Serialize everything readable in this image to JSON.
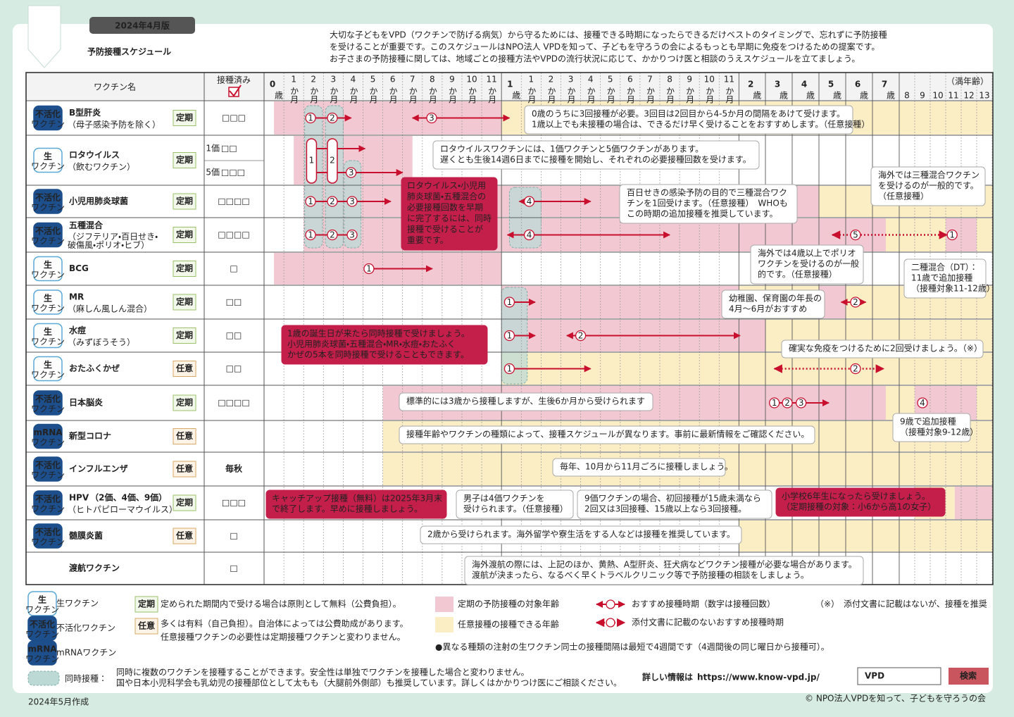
{
  "header": {
    "edition": "2024年4月版",
    "title": "予防接種スケジュール",
    "intro": [
      "大切な子どもをVPD（ワクチンで防げる病気）から守るためには、接種できる時期になったらできるだけベストのタイミングで、忘れずに予防接種",
      "を受けることが重要です。このスケジュールはNPO法人 VPDを知って、子どもを守ろうの会によるもっとも早期に免疫をつけるための提案です。",
      "お子さまの予防接種に関しては、地域ごとの接種方法やVPDの流行状況に応じて、かかりつけ医と相談のうえスケジュールを立てましょう。"
    ]
  },
  "table": {
    "vaccine_col": "ワクチン名",
    "done_col": "接種済み",
    "age_note": "（満年齢）",
    "ages": [
      {
        "num": "0",
        "unit": "歳"
      },
      {
        "num": "1",
        "unit": "か月"
      },
      {
        "num": "2",
        "unit": "か月"
      },
      {
        "num": "3",
        "unit": "か月"
      },
      {
        "num": "4",
        "unit": "か月"
      },
      {
        "num": "5",
        "unit": "か月"
      },
      {
        "num": "6",
        "unit": "か月"
      },
      {
        "num": "7",
        "unit": "か月"
      },
      {
        "num": "8",
        "unit": "か月"
      },
      {
        "num": "9",
        "unit": "か月"
      },
      {
        "num": "10",
        "unit": "か月"
      },
      {
        "num": "11",
        "unit": "か月"
      },
      {
        "num": "1",
        "unit": "歳"
      },
      {
        "num": "1",
        "unit": "か月"
      },
      {
        "num": "2",
        "unit": "か月"
      },
      {
        "num": "3",
        "unit": "か月"
      },
      {
        "num": "4",
        "unit": "か月"
      },
      {
        "num": "5",
        "unit": "か月"
      },
      {
        "num": "6",
        "unit": "か月"
      },
      {
        "num": "7",
        "unit": "か月"
      },
      {
        "num": "8",
        "unit": "か月"
      },
      {
        "num": "9",
        "unit": "か月"
      },
      {
        "num": "10",
        "unit": "か月"
      },
      {
        "num": "11",
        "unit": "か月"
      },
      {
        "num": "2",
        "unit": "歳"
      },
      {
        "num": "3",
        "unit": "歳"
      },
      {
        "num": "4",
        "unit": "歳"
      },
      {
        "num": "5",
        "unit": "歳"
      },
      {
        "num": "6",
        "unit": "歳"
      },
      {
        "num": "7",
        "unit": "歳"
      },
      {
        "num": "8"
      },
      {
        "num": "9"
      },
      {
        "num": "10"
      },
      {
        "num": "11"
      },
      {
        "num": "12"
      },
      {
        "num": "13"
      }
    ],
    "vaccines": [
      {
        "badge": {
          "top": "不活化",
          "bottom": "ワクチン"
        },
        "name": "B型肝炎",
        "sub": [
          "（母子感染予防を除く）"
        ],
        "category": "定期",
        "boxes": "□□□",
        "doses": [
          "1",
          "2",
          "3"
        ]
      },
      {
        "badge": {
          "top": "生",
          "bottom": "ワクチン"
        },
        "name": "ロタウイルス",
        "sub": [
          "（飲むワクチン）"
        ],
        "category": "定期",
        "subrows": [
          {
            "label": "1価",
            "boxes": "□□"
          },
          {
            "label": "5価",
            "boxes": "□□□"
          }
        ],
        "doses": [
          "1",
          "2",
          "3"
        ]
      },
      {
        "badge": {
          "top": "不活化",
          "bottom": "ワクチン"
        },
        "name": "小児用肺炎球菌",
        "category": "定期",
        "boxes": "□□□□",
        "doses": [
          "1",
          "2",
          "3",
          "4"
        ]
      },
      {
        "badge": {
          "top": "不活化",
          "bottom": "ワクチン"
        },
        "name": "五種混合",
        "sub": [
          "（ジフテリア・百日せき・",
          "破傷風・ポリオ・ヒブ）"
        ],
        "category": "定期",
        "boxes": "□□□□",
        "doses": [
          "1",
          "2",
          "3",
          "4",
          "5",
          "1"
        ]
      },
      {
        "badge": {
          "top": "生",
          "bottom": "ワクチン"
        },
        "name": "BCG",
        "category": "定期",
        "boxes": "□",
        "doses": [
          "1"
        ]
      },
      {
        "badge": {
          "top": "生",
          "bottom": "ワクチン"
        },
        "name": "MR",
        "sub": [
          "（麻しん風しん混合）"
        ],
        "category": "定期",
        "boxes": "□□",
        "doses": [
          "1",
          "2"
        ]
      },
      {
        "badge": {
          "top": "生",
          "bottom": "ワクチン"
        },
        "name": "水痘",
        "sub": [
          "（みずぼうそう）"
        ],
        "category": "定期",
        "boxes": "□□",
        "doses": [
          "1",
          "2"
        ]
      },
      {
        "badge": {
          "top": "生",
          "bottom": "ワクチン"
        },
        "name": "おたふくかぜ",
        "category": "任意",
        "boxes": "□□",
        "doses": [
          "1",
          "2"
        ]
      },
      {
        "badge": {
          "top": "不活化",
          "bottom": "ワクチン"
        },
        "name": "日本脳炎",
        "category": "定期",
        "boxes": "□□□□",
        "doses": [
          "1",
          "2",
          "3",
          "4"
        ]
      },
      {
        "badge": {
          "top": "mRNA",
          "bottom": "ワクチン"
        },
        "name": "新型コロナ",
        "category": "任意"
      },
      {
        "badge": {
          "top": "不活化",
          "bottom": "ワクチン"
        },
        "name": "インフルエンザ",
        "category": "任意",
        "boxes": "毎秋"
      },
      {
        "badge": {
          "top": "不活化",
          "bottom": "ワクチン"
        },
        "name": "HPV",
        "name_extra": "（2価、4価、9価）",
        "sub": [
          "（ヒトパピローマウイルス）"
        ],
        "category": "定期",
        "boxes": "□□□"
      },
      {
        "badge": {
          "top": "不活化",
          "bottom": "ワクチン"
        },
        "name": "髄膜炎菌",
        "category": "任意",
        "boxes": "□"
      },
      {
        "name": "渡航ワクチン",
        "boxes": "□"
      }
    ]
  },
  "notes": [
    [
      "0歳のうちに3回接種が必要。3回目は2回目から4-5か月の間隔をあけて受けます。",
      "1歳以上でも未接種の場合は、できるだけ早く受けることをおすすめします。（任意接種）"
    ],
    [
      "ロタウイルスワクチンには、1価ワクチンと5価ワクチンがあります。",
      "遅くとも生後14週6日までに接種を開始し、それぞれの必要接種回数を受けます。"
    ],
    [
      "ロタウイルス・小児用",
      "肺炎球菌・五種混合の",
      "必要接種回数を早期",
      "に完了するには、同時",
      "接種で受けることが",
      "重要です。"
    ],
    [
      "海外では三種混合ワクチン",
      "を受けるのが一般的です。",
      "（任意接種）"
    ],
    [
      "百日せきの感染予防の目的で三種混合ワク",
      "チンを1回受けます。（任意接種）　WHOも",
      "この時期の追加接種を推奨しています。"
    ],
    [
      "海外では4歳以上でポリオ",
      "ワクチンを受けるのが一般",
      "的です。（任意接種）"
    ],
    [
      "二種混合（DT）：",
      "11歳で追加接種",
      "（接種対象11-12歳）"
    ],
    [
      "幼稚園、保育園の年長の",
      "4月〜6月がおすすめ"
    ],
    [
      "1歳の誕生日が来たら同時接種で受けましょう。",
      "小児用肺炎球菌・五種混合・MR・水痘・おたふく",
      "かぜの5本を同時接種で受けることもできます。"
    ],
    [
      "確実な免疫をつけるために2回受けましょう。（※）"
    ],
    [
      "標準的には3歳から接種しますが、生後6か月から受けられます"
    ],
    [
      "9歳で追加接種",
      "（接種対象9-12歳）"
    ],
    [
      "接種年齢やワクチンの種類によって、接種スケジュールが異なります。事前に最新情報をご確認ください。"
    ],
    [
      "毎年、10月から11月ごろに接種しましょう。"
    ],
    [
      "キャッチアップ接種（無料）は2025年3月末",
      "で終了します。早めに接種しましょう。"
    ],
    [
      "男子は4価ワクチンを",
      "受けられます。（任意接種）"
    ],
    [
      "9価ワクチンの場合、初回接種が15歳未満なら",
      "2回又は3回接種、15歳以上なら3回接種。"
    ],
    [
      "小学校6年生になったら受けましょう。",
      "（定期接種の対象：小6から高1の女子）"
    ],
    [
      "2歳から受けられます。海外留学や寮生活をする人などは接種を推奨しています。"
    ],
    [
      "海外渡航の際には、上記のほか、黄熱、A型肝炎、狂犬病などワクチン接種が必要な場合があります。",
      "渡航が決まったら、なるべく早くトラベルクリニック等で予防接種の相談をしましょう。"
    ]
  ],
  "legend": {
    "live": {
      "top": "生",
      "bottom": "ワクチン",
      "text": "生ワクチン"
    },
    "inactivated": {
      "top": "不活化",
      "bottom": "ワクチン",
      "text": "不活化ワクチン"
    },
    "mrna": {
      "top": "mRNA",
      "bottom": "ワクチン",
      "text": "mRNAワクチン"
    },
    "teiki": {
      "term": "定期",
      "text": [
        "定められた期間内で受ける場合は原則として無料（公費負担）。"
      ]
    },
    "nini": {
      "term": "任意",
      "text": [
        "多くは有料（自己負担）。自治体によっては公費助成があります。",
        "任意接種ワクチンの必要性は定期接種ワクチンと変わりません。"
      ]
    },
    "pink": "定期の予防接種の対象年齢",
    "yellow": "任意接種の接種できる年齢",
    "arrow": "おすすめ接種時期（数字は接種回数）",
    "dotted": "添付文書に記載のないおすすめ接種時期",
    "asterisk": {
      "mark": "（※）",
      "text": "添付文書に記載はないが、接種を推奨"
    },
    "interval_note": "●異なる種類の注射の生ワクチン同士の接種間隔は最短で4週間です（4週間後の同じ曜日から接種可）。",
    "simultaneous": {
      "term": "同時接種：",
      "text": [
        "同時に複数のワクチンを接種することができます。安全性は単独でワクチンを接種した場合と変わりません。",
        "国や日本小児科学会も乳幼児の接種部位として太もも（大腿前外側部）も推奨しています。詳しくはかかりつけ医にご相談ください。"
      ]
    }
  },
  "more_info": {
    "label": "詳しい情報は",
    "url": "https://www.know-vpd.jp/",
    "search_text": "VPD",
    "search_button": "検索"
  },
  "footer": {
    "created": "2024年5月作成",
    "copyright": "© NPO法人VPDを知って、子どもを守ろうの会"
  }
}
